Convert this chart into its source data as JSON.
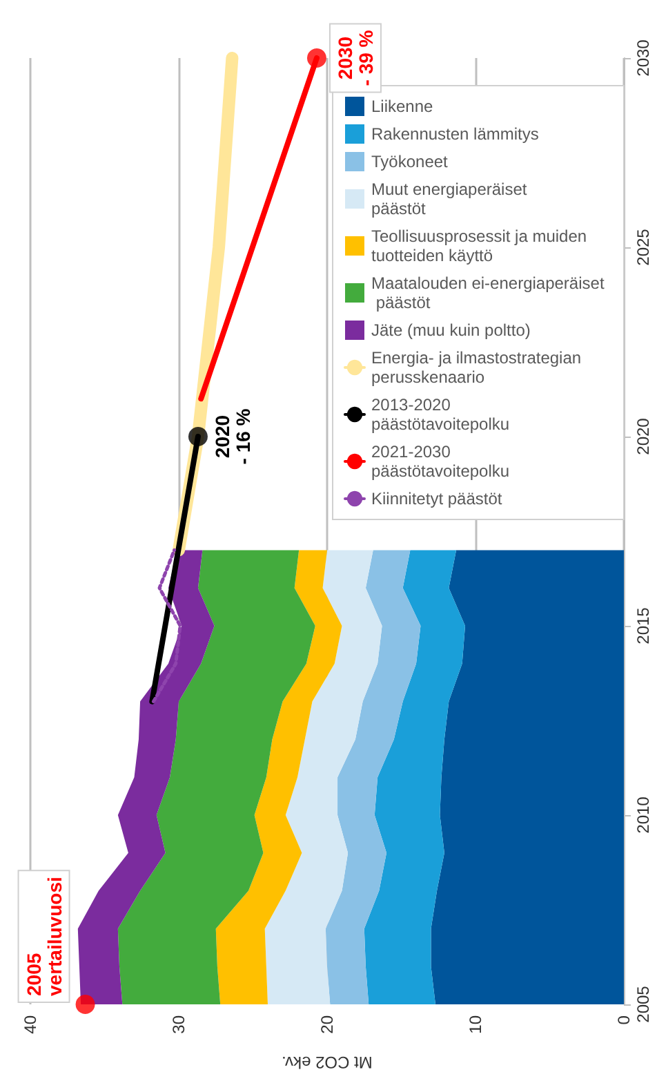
{
  "chart_data": {
    "type": "area",
    "stacked": true,
    "orientation": "horizontal",
    "xlabel": "Mt CO2 ekv.",
    "x": [
      2005,
      2006,
      2007,
      2008,
      2009,
      2010,
      2011,
      2012,
      2013,
      2014,
      2015,
      2016,
      2017
    ],
    "xlim": [
      40,
      0
    ],
    "xticks": [
      40,
      30,
      20,
      10,
      0
    ],
    "ylim": [
      2005,
      2030
    ],
    "yticks": [
      2005,
      2010,
      2015,
      2020,
      2025,
      2030
    ],
    "grid": "x",
    "legend": "top right",
    "series": [
      {
        "name": "Liikenne",
        "color": "#00559b",
        "values": [
          12.7,
          13.0,
          13.0,
          12.6,
          12.1,
          12.4,
          12.3,
          12.1,
          11.8,
          10.9,
          10.7,
          11.8,
          11.3
        ]
      },
      {
        "name": "Rakennusten lämmitys",
        "color": "#1a9fd9",
        "values": [
          4.5,
          4.4,
          4.5,
          3.9,
          3.9,
          4.4,
          4.3,
          3.4,
          3.1,
          3.1,
          3.0,
          3.1,
          3.1
        ]
      },
      {
        "name": "Työkoneet",
        "color": "#8ac1e6",
        "values": [
          2.6,
          2.6,
          2.6,
          2.5,
          2.6,
          2.5,
          2.7,
          2.6,
          2.7,
          2.6,
          2.6,
          2.5,
          2.5
        ]
      },
      {
        "name": "Muut energiaperäiset päästöt",
        "color": "#d6e9f5",
        "values": [
          4.2,
          4.1,
          4.1,
          3.8,
          3.1,
          3.5,
          2.7,
          3.4,
          3.4,
          2.9,
          2.7,
          2.9,
          3.1
        ]
      },
      {
        "name": "Teollisuusprosessit ja muiden tuotteiden käyttö",
        "color": "#ffc000",
        "values": [
          3.2,
          3.3,
          3.3,
          2.5,
          2.6,
          2.1,
          2.1,
          2.2,
          2.0,
          1.9,
          1.8,
          1.9,
          1.9
        ]
      },
      {
        "name": "Maatalouden ei-energiaperäiset päästöt",
        "color": "#43ab3d",
        "values": [
          6.6,
          6.6,
          6.6,
          7.3,
          6.6,
          6.6,
          6.5,
          6.5,
          7.0,
          7.1,
          6.8,
          6.5,
          6.5
        ]
      },
      {
        "name": "Jäte (muu kuin poltto)",
        "color": "#7b2c9e",
        "values": [
          2.8,
          2.7,
          2.7,
          2.8,
          2.5,
          2.6,
          2.4,
          2.5,
          2.6,
          2.2,
          2.2,
          2.0,
          1.7
        ]
      },
      {
        "name": "Energia- ja ilmastostrategian perusskenaario",
        "type": "line",
        "color": "#ffe699",
        "x": [
          2017,
          2020,
          2025,
          2030
        ],
        "values": [
          30.0,
          28.7,
          27.3,
          26.4
        ]
      },
      {
        "name": "2013-2020 päästötavoitepolku",
        "type": "line",
        "color": "#000000",
        "x": [
          2013,
          2020
        ],
        "values": [
          31.8,
          28.7
        ]
      },
      {
        "name": "2021-2030 päästötavoitepolku",
        "type": "line",
        "color": "#ff0000",
        "x": [
          2021,
          2030
        ],
        "values": [
          28.5,
          20.7
        ]
      },
      {
        "name": "Kiinnitetyt päästöt",
        "type": "line",
        "color": "#8e44ad",
        "line_style": "dotted",
        "x": [
          2013,
          2014,
          2015,
          2016,
          2017
        ],
        "values": [
          31.7,
          30.2,
          29.9,
          31.3,
          30.3
        ]
      },
      {
        "type": "scatter",
        "color": "#ff0000",
        "x": [
          2005,
          2030
        ],
        "values": [
          36.3,
          20.7
        ]
      },
      {
        "type": "scatter",
        "color": "#000000",
        "x": [
          2020
        ],
        "values": [
          28.7
        ]
      }
    ],
    "annotations": [
      {
        "text": "2005\nvertailuvuosi",
        "x": 36.3,
        "y": 2005
      },
      {
        "text": "2020\n- 16 %",
        "x": 28.7,
        "y": 2020
      },
      {
        "text": "2030\n- 39 %",
        "x": 20.7,
        "y": 2030
      }
    ]
  }
}
